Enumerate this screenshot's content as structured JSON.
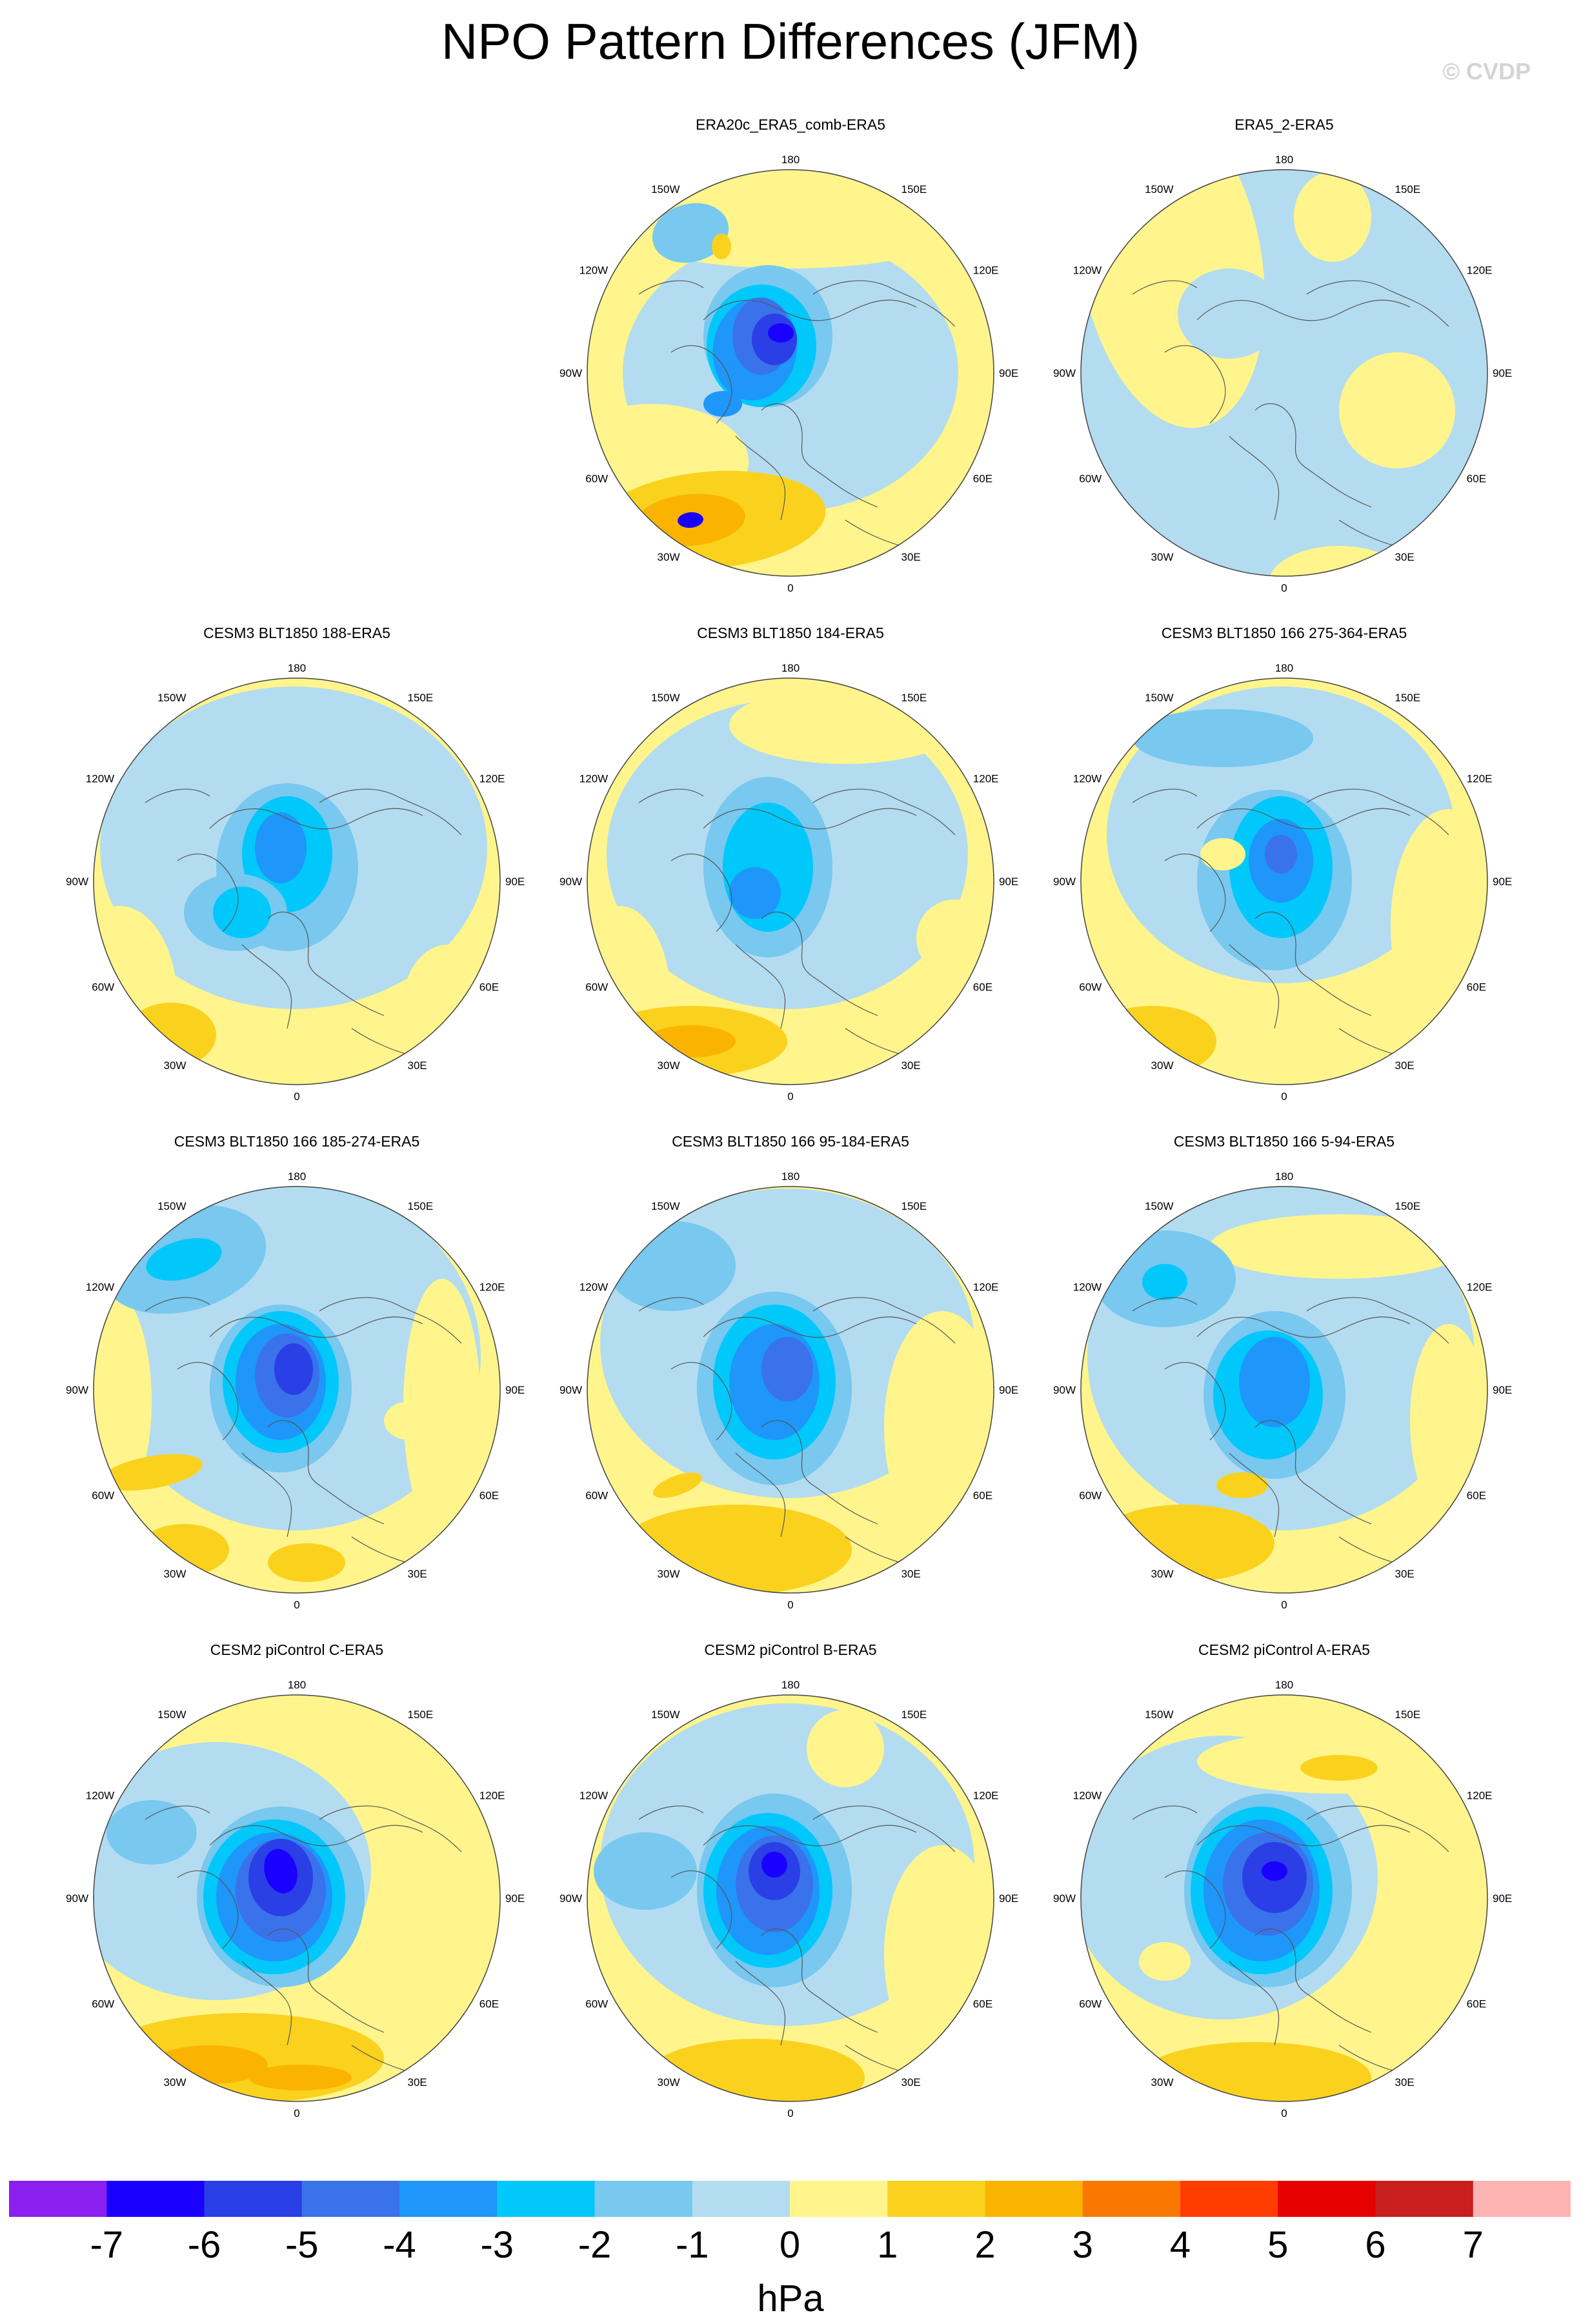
{
  "title": "NPO Pattern Differences (JFM)",
  "copyright": "© CVDP",
  "longitude_labels": {
    "top": "180",
    "bottom": "0",
    "left": "90W",
    "right": "90E",
    "ul": "150W",
    "ur": "150E",
    "ml_up": "120W",
    "mr_up": "120E",
    "ml_low": "60W",
    "mr_low": "60E",
    "ll": "30W",
    "lr": "30E"
  },
  "panels": [
    {
      "title": "ERA20c_ERA5_comb-ERA5"
    },
    {
      "title": "ERA5_2-ERA5"
    },
    {
      "title": "CESM3 BLT1850 188-ERA5"
    },
    {
      "title": "CESM3 BLT1850 184-ERA5"
    },
    {
      "title": "CESM3 BLT1850 166 275-364-ERA5"
    },
    {
      "title": "CESM3 BLT1850 166 185-274-ERA5"
    },
    {
      "title": "CESM3 BLT1850 166 95-184-ERA5"
    },
    {
      "title": "CESM3 BLT1850 166 5-94-ERA5"
    },
    {
      "title": "CESM2 piControl C-ERA5"
    },
    {
      "title": "CESM2 piControl B-ERA5"
    },
    {
      "title": "CESM2 piControl A-ERA5"
    }
  ],
  "colorbar": {
    "colors": [
      "#8b1ff0",
      "#1a00ff",
      "#2a3fe6",
      "#3a72eb",
      "#1e96fa",
      "#00c8fa",
      "#78c8f0",
      "#b4dcf0",
      "#fff58c",
      "#fad21e",
      "#fab400",
      "#fa7800",
      "#ff3c00",
      "#e60000",
      "#c81e1e",
      "#ffb4b4"
    ],
    "ticks": [
      "-7",
      "-6",
      "-5",
      "-4",
      "-3",
      "-2",
      "-1",
      "0",
      "1",
      "2",
      "3",
      "4",
      "5",
      "6",
      "7"
    ],
    "units": "hPa"
  }
}
